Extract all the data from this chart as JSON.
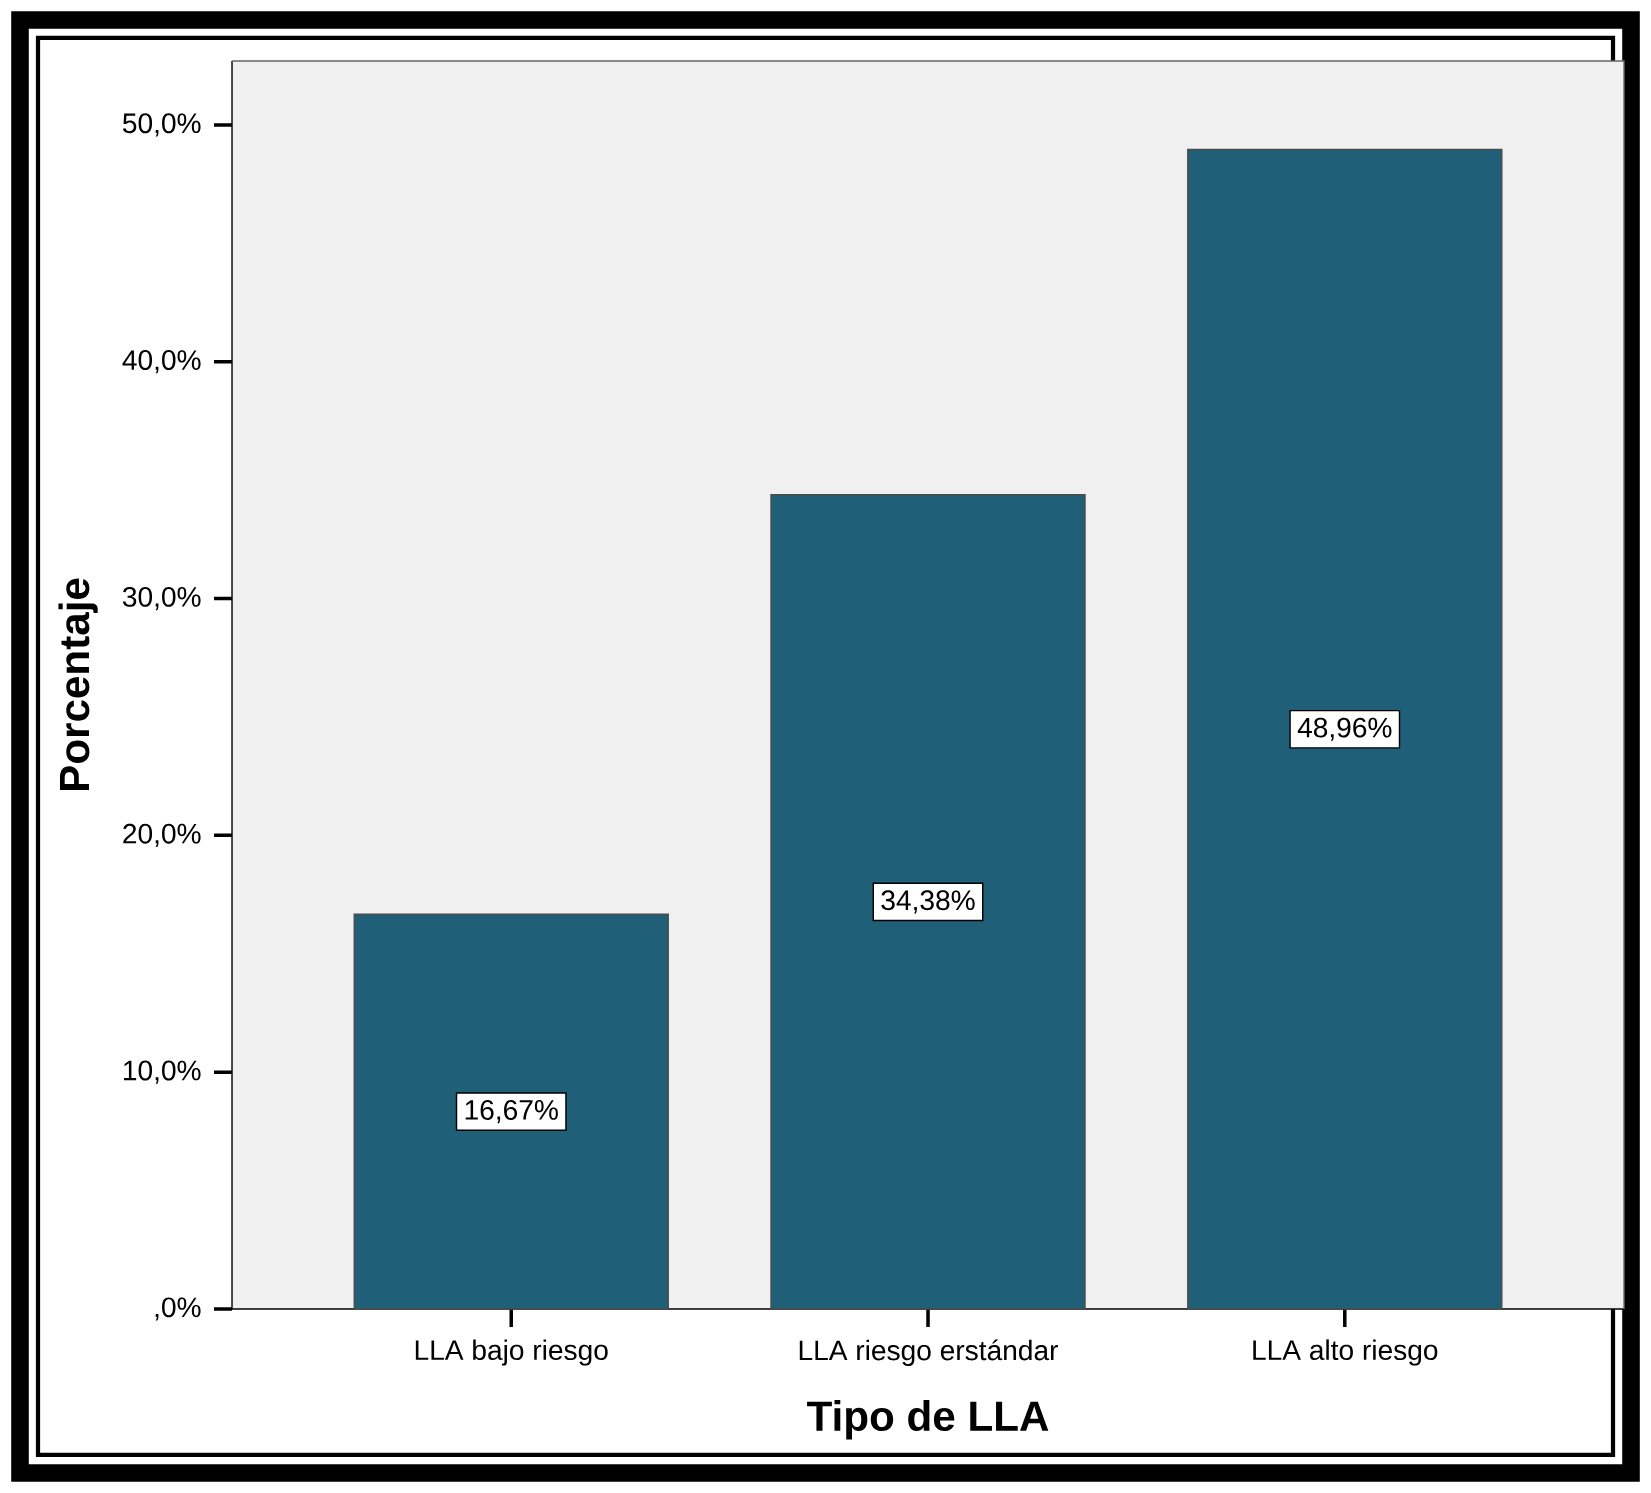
{
  "chart_data": {
    "type": "bar",
    "xlabel": "Tipo de LLA",
    "ylabel": "Porcentaje",
    "categories": [
      "LLA bajo riesgo",
      "LLA riesgo erstándar",
      "LLA alto riesgo"
    ],
    "values": [
      16.67,
      34.38,
      48.96
    ],
    "value_labels": [
      "16,67%",
      "34,38%",
      "48,96%"
    ],
    "color": "#1f5f77",
    "ylim": [
      0,
      52.7
    ],
    "yticks": [
      {
        "value": 0,
        "label": ",0%"
      },
      {
        "value": 10,
        "label": "10,0%"
      },
      {
        "value": 20,
        "label": "20,0%"
      },
      {
        "value": 30,
        "label": "30,0%"
      },
      {
        "value": 40,
        "label": "40,0%"
      },
      {
        "value": 50,
        "label": "50,0%"
      }
    ],
    "data_labels": false
  }
}
